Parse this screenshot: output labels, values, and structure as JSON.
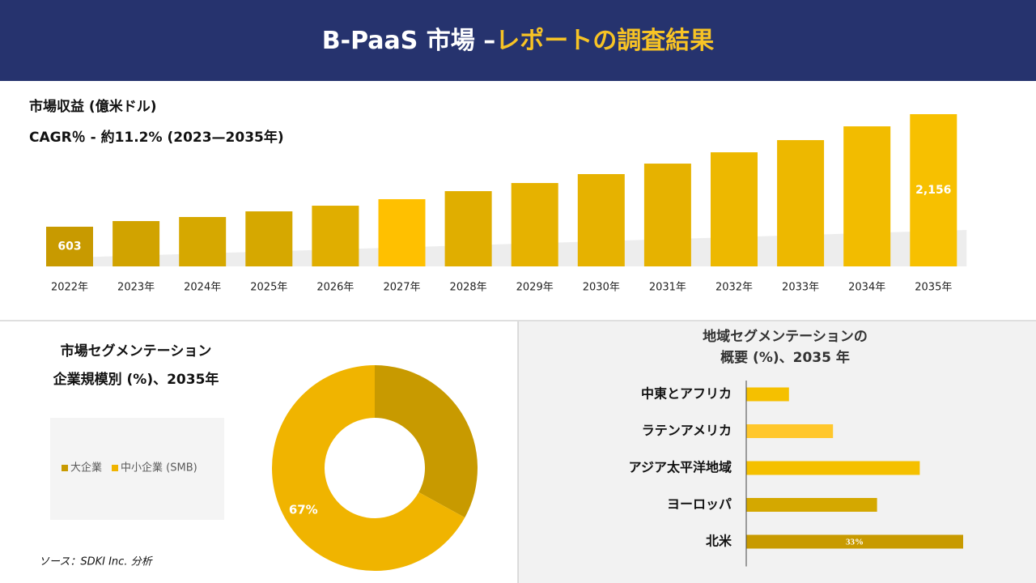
{
  "header": {
    "title_main": "B-PaaS 市場 –",
    "title_highlight": "レポートの調査結果"
  },
  "source": "ソース：SDKI Inc. 分析",
  "chart_data": [
    {
      "type": "bar",
      "title": "市場収益 (億米ドル)",
      "subtitle": "CAGR％ - 約11.2% (2023—2035年)",
      "categories": [
        "2022年",
        "2023年",
        "2024年",
        "2025年",
        "2026年",
        "2027年",
        "2028年",
        "2029年",
        "2030年",
        "2031年",
        "2032年",
        "2033年",
        "2034年",
        "2035年"
      ],
      "values": [
        603,
        681,
        737,
        815,
        893,
        983,
        1094,
        1206,
        1329,
        1474,
        1630,
        1798,
        1988,
        2156
      ],
      "value_labels": [
        "603",
        null,
        null,
        null,
        null,
        null,
        null,
        null,
        null,
        null,
        null,
        null,
        null,
        "2,156"
      ],
      "colors": [
        "#c89a00",
        "#d1a300",
        "#d6a800",
        "#d6a800",
        "#e0ae00",
        "#ffc000",
        "#e0ae00",
        "#e6b200",
        "#e6b200",
        "#e6b200",
        "#edb800",
        "#edb800",
        "#f2bc00",
        "#f7c000"
      ]
    },
    {
      "type": "pie",
      "title": [
        "市場セグメンテーション",
        "企業規模別 (%)、2035年"
      ],
      "categories": [
        "大企業",
        "中小企業 (SMB)"
      ],
      "values": [
        33,
        67
      ],
      "value_labels": [
        null,
        "67%"
      ],
      "colors": [
        "#c89a00",
        "#f0b400"
      ],
      "legend": "left"
    },
    {
      "type": "barh",
      "title": [
        "地域セグメンテーションの",
        "概要 (%)、2035 年"
      ],
      "categories": [
        "中東とアフリカ",
        "ラテンアメリカ",
        "アジア太平洋地域",
        "ヨーロッパ",
        "北米"
      ],
      "values": [
        6.5,
        13.2,
        26.4,
        19.9,
        33
      ],
      "value_labels": [
        null,
        null,
        null,
        null,
        "33%"
      ],
      "colors": [
        "#f5c000",
        "#ffc72c",
        "#f5c000",
        "#d4a800",
        "#c89a00"
      ]
    }
  ]
}
